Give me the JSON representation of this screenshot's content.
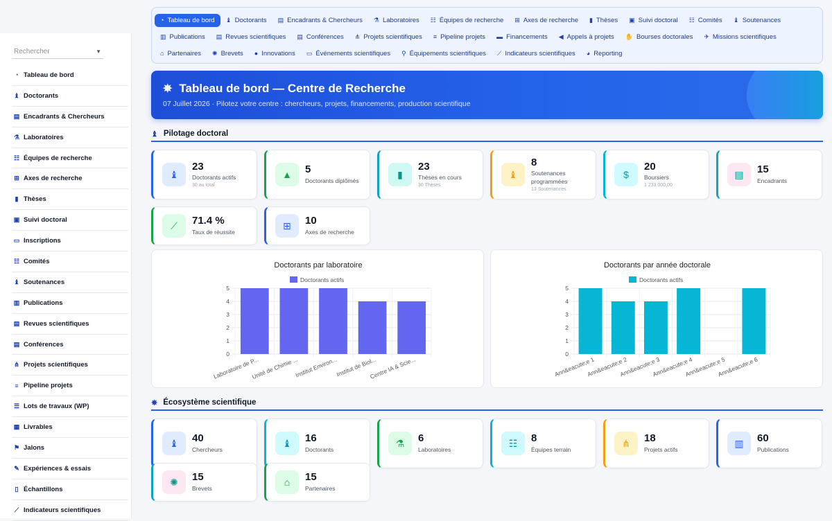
{
  "search": {
    "placeholder": "Rechercher"
  },
  "sidebar": {
    "items": [
      {
        "label": "Tableau de bord",
        "icon": "gauge-icon",
        "glyph": "◔"
      },
      {
        "label": "Doctorants",
        "icon": "user-graduate-icon",
        "glyph": "♝"
      },
      {
        "label": "Encadrants & Chercheurs",
        "icon": "chalkboard-teacher-icon",
        "glyph": "▤"
      },
      {
        "label": "Laboratoires",
        "icon": "flask-icon",
        "glyph": "⚗"
      },
      {
        "label": "Équipes de recherche",
        "icon": "users-icon",
        "glyph": "☷"
      },
      {
        "label": "Axes de recherche",
        "icon": "sitemap-icon",
        "glyph": "⊞"
      },
      {
        "label": "Thèses",
        "icon": "book-icon",
        "glyph": "▮"
      },
      {
        "label": "Suivi doctoral",
        "icon": "clipboard-icon",
        "glyph": "▣"
      },
      {
        "label": "Inscriptions",
        "icon": "id-card-icon",
        "glyph": "▭"
      },
      {
        "label": "Comités",
        "icon": "users-icon",
        "glyph": "☷"
      },
      {
        "label": "Soutenances",
        "icon": "user-tie-icon",
        "glyph": "♝"
      },
      {
        "label": "Publications",
        "icon": "book-open-icon",
        "glyph": "▥"
      },
      {
        "label": "Revues scientifiques",
        "icon": "newspaper-icon",
        "glyph": "▤"
      },
      {
        "label": "Conférences",
        "icon": "chalkboard-icon",
        "glyph": "▤"
      },
      {
        "label": "Projets scientifiques",
        "icon": "project-diagram-icon",
        "glyph": "⋔"
      },
      {
        "label": "Pipeline projets",
        "icon": "bars-icon",
        "glyph": "≡"
      },
      {
        "label": "Lots de travaux (WP)",
        "icon": "list-icon",
        "glyph": "☰"
      },
      {
        "label": "Livrables",
        "icon": "box-icon",
        "glyph": "▦"
      },
      {
        "label": "Jalons",
        "icon": "flag-icon",
        "glyph": "⚑"
      },
      {
        "label": "Expériences & essais",
        "icon": "pen-icon",
        "glyph": "✎"
      },
      {
        "label": "Échantillons",
        "icon": "vial-icon",
        "glyph": "▯"
      },
      {
        "label": "Indicateurs scientifiques",
        "icon": "chart-line-icon",
        "glyph": "⟋"
      }
    ]
  },
  "topnav": {
    "rows": [
      [
        {
          "label": "Tableau de bord",
          "icon": "gauge-icon",
          "glyph": "◔",
          "active": true
        },
        {
          "label": "Doctorants",
          "icon": "user-graduate-icon",
          "glyph": "♝"
        },
        {
          "label": "Encadrants & Chercheurs",
          "icon": "chalkboard-teacher-icon",
          "glyph": "▤"
        },
        {
          "label": "Laboratoires",
          "icon": "flask-icon",
          "glyph": "⚗"
        },
        {
          "label": "Équipes de recherche",
          "icon": "users-icon",
          "glyph": "☷"
        },
        {
          "label": "Axes de recherche",
          "icon": "sitemap-icon",
          "glyph": "⊞"
        },
        {
          "label": "Thèses",
          "icon": "book-icon",
          "glyph": "▮"
        },
        {
          "label": "Suivi doctoral",
          "icon": "clipboard-icon",
          "glyph": "▣"
        },
        {
          "label": "Comités",
          "icon": "users-icon",
          "glyph": "☷"
        },
        {
          "label": "Soutenances",
          "icon": "user-tie-icon",
          "glyph": "♝"
        }
      ],
      [
        {
          "label": "Publications",
          "icon": "book-open-icon",
          "glyph": "▥"
        },
        {
          "label": "Revues scientifiques",
          "icon": "newspaper-icon",
          "glyph": "▤"
        },
        {
          "label": "Conférences",
          "icon": "chalkboard-icon",
          "glyph": "▤"
        },
        {
          "label": "Projets scientifiques",
          "icon": "project-diagram-icon",
          "glyph": "⋔"
        },
        {
          "label": "Pipeline projets",
          "icon": "bars-icon",
          "glyph": "≡"
        },
        {
          "label": "Financements",
          "icon": "money-icon",
          "glyph": "▬"
        },
        {
          "label": "Appels à projets",
          "icon": "bullhorn-icon",
          "glyph": "◀"
        },
        {
          "label": "Bourses doctorales",
          "icon": "hand-coin-icon",
          "glyph": "✋"
        },
        {
          "label": "Missions scientifiques",
          "icon": "plane-icon",
          "glyph": "✈"
        }
      ],
      [
        {
          "label": "Partenaires",
          "icon": "landmark-icon",
          "glyph": "⌂"
        },
        {
          "label": "Brevets",
          "icon": "certificate-icon",
          "glyph": "✺"
        },
        {
          "label": "Innovations",
          "icon": "lightbulb-icon",
          "glyph": "●"
        },
        {
          "label": "Événements scientifiques",
          "icon": "desktop-icon",
          "glyph": "▭"
        },
        {
          "label": "Équipements scientifiques",
          "icon": "microscope-icon",
          "glyph": "⚲"
        },
        {
          "label": "Indicateurs scientifiques",
          "icon": "chart-line-icon",
          "glyph": "⟋"
        },
        {
          "label": "Reporting",
          "icon": "chart-pie-icon",
          "glyph": "◕"
        }
      ]
    ]
  },
  "hero": {
    "title": "Tableau de bord — Centre de Recherche",
    "subtitle": "07 Juillet 2026 · Pilotez votre centre : chercheurs, projets, financements, production scientifique",
    "icon": "atom-icon"
  },
  "sections": {
    "pilotage": "Pilotage doctoral",
    "ecosysteme": "Écosystème scientifique"
  },
  "colors": {
    "blue": "#2563eb",
    "green": "#16a34a",
    "teal": "#0ea5b7",
    "orange": "#f59e0b",
    "cyan": "#06b6d4",
    "pink": "#ec4899",
    "bar_indigo": "#6366f1",
    "bar_cyan": "#06b6d4"
  },
  "kpis_pilotage": [
    {
      "num": "23",
      "label": "Doctorants actifs",
      "sub": "30 au total",
      "icon": "user-graduate-icon",
      "glyph": "♝",
      "accent": "#2563eb",
      "badge_bg": "#e0ebff",
      "badge_fg": "#2563eb"
    },
    {
      "num": "5",
      "label": "Doctorants diplômés",
      "sub": "",
      "icon": "graduation-cap-icon",
      "glyph": "▲",
      "accent": "#16a34a",
      "badge_bg": "#dcfce7",
      "badge_fg": "#16a34a"
    },
    {
      "num": "23",
      "label": "Thèses en cours",
      "sub": "30 Thèses",
      "icon": "book-icon",
      "glyph": "▮",
      "accent": "#0ea5b7",
      "badge_bg": "#cff7f4",
      "badge_fg": "#0d9488"
    },
    {
      "num": "8",
      "label": "Soutenances programmées",
      "sub": "13 Soutenances",
      "icon": "user-tie-icon",
      "glyph": "♝",
      "accent": "#f59e0b",
      "badge_bg": "#fef3c7",
      "badge_fg": "#f59e0b"
    },
    {
      "num": "20",
      "label": "Boursiers",
      "sub": "1 233 000,00",
      "icon": "hand-dollar-icon",
      "glyph": "$",
      "accent": "#06b6d4",
      "badge_bg": "#cffafe",
      "badge_fg": "#0891b2"
    },
    {
      "num": "15",
      "label": "Encadrants",
      "sub": "",
      "icon": "chalkboard-teacher-icon",
      "glyph": "▤",
      "accent": "#0ea5b7",
      "badge_bg": "#fce7f3",
      "badge_fg": "#0d9488"
    },
    {
      "num": "71.4 %",
      "label": "Taux de réussite",
      "sub": "",
      "icon": "chart-line-icon",
      "glyph": "⟋",
      "accent": "#16a34a",
      "badge_bg": "#dcfce7",
      "badge_fg": "#16a34a"
    },
    {
      "num": "10",
      "label": "Axes de recherche",
      "sub": "",
      "icon": "sitemap-icon",
      "glyph": "⊞",
      "accent": "#2563eb",
      "badge_bg": "#e0ebff",
      "badge_fg": "#2563eb"
    }
  ],
  "kpis_ecosysteme": [
    {
      "num": "40",
      "label": "Chercheurs",
      "sub": "",
      "icon": "user-graduate-icon",
      "glyph": "♝",
      "accent": "#2563eb",
      "badge_bg": "#e0ebff",
      "badge_fg": "#2563eb"
    },
    {
      "num": "16",
      "label": "Doctorants",
      "sub": "",
      "icon": "user-graduate-icon",
      "glyph": "♝",
      "accent": "#06b6d4",
      "badge_bg": "#cffafe",
      "badge_fg": "#0891b2"
    },
    {
      "num": "6",
      "label": "Laboratoires",
      "sub": "",
      "icon": "flask-icon",
      "glyph": "⚗",
      "accent": "#16a34a",
      "badge_bg": "#dcfce7",
      "badge_fg": "#16a34a"
    },
    {
      "num": "8",
      "label": "Équipes terrain",
      "sub": "",
      "icon": "users-icon",
      "glyph": "☷",
      "accent": "#06b6d4",
      "badge_bg": "#cffafe",
      "badge_fg": "#0891b2"
    },
    {
      "num": "18",
      "label": "Projets actifs",
      "sub": "",
      "icon": "project-diagram-icon",
      "glyph": "⋔",
      "accent": "#f59e0b",
      "badge_bg": "#fef3c7",
      "badge_fg": "#f59e0b"
    },
    {
      "num": "60",
      "label": "Publications",
      "sub": "",
      "icon": "book-open-icon",
      "glyph": "▥",
      "accent": "#2563eb",
      "badge_bg": "#e0ebff",
      "badge_fg": "#2563eb"
    },
    {
      "num": "15",
      "label": "Brevets",
      "sub": "",
      "icon": "certificate-icon",
      "glyph": "✺",
      "accent": "#0ea5b7",
      "badge_bg": "#fce7f3",
      "badge_fg": "#0d9488"
    },
    {
      "num": "15",
      "label": "Partenaires",
      "sub": "",
      "icon": "landmark-icon",
      "glyph": "⌂",
      "accent": "#16a34a",
      "badge_bg": "#dcfce7",
      "badge_fg": "#16a34a"
    }
  ],
  "chart_data": [
    {
      "type": "bar",
      "title": "Doctorants par laboratoire",
      "categories": [
        "Laboratoire de P...",
        "Unité de Chimie ...",
        "Institut Environ...",
        "Institut de Biol...",
        "Centre IA & Scie..."
      ],
      "series": [
        {
          "name": "Doctorants actifs",
          "values": [
            5,
            5,
            5,
            4,
            4
          ],
          "color": "#6366f1"
        }
      ],
      "ylim": [
        0,
        5
      ],
      "yticks": [
        0,
        1,
        2,
        3,
        4,
        5
      ],
      "legend": "top",
      "grid": true
    },
    {
      "type": "bar",
      "title": "Doctorants par année doctorale",
      "categories": [
        "Ann&eacute;e 1",
        "Ann&eacute;e 2",
        "Ann&eacute;e 3",
        "Ann&eacute;e 4",
        "Ann&eacute;e 5",
        "Ann&eacute;e 6"
      ],
      "series": [
        {
          "name": "Doctorants actifs",
          "values": [
            5,
            4,
            4,
            5,
            0,
            5
          ],
          "color": "#06b6d4"
        }
      ],
      "ylim": [
        0,
        5
      ],
      "yticks": [
        0,
        1,
        2,
        3,
        4,
        5
      ],
      "legend": "top",
      "grid": true
    }
  ]
}
